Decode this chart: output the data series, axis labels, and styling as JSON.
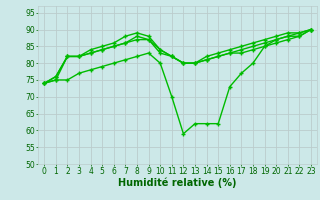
{
  "x": [
    0,
    1,
    2,
    3,
    4,
    5,
    6,
    7,
    8,
    9,
    10,
    11,
    12,
    13,
    14,
    15,
    16,
    17,
    18,
    19,
    20,
    21,
    22,
    23
  ],
  "series": [
    [
      74,
      76,
      82,
      82,
      84,
      85,
      86,
      88,
      89,
      88,
      84,
      82,
      80,
      80,
      82,
      83,
      84,
      85,
      86,
      87,
      88,
      89,
      89,
      90
    ],
    [
      74,
      76,
      82,
      82,
      83,
      84,
      85,
      86,
      88,
      87,
      83,
      82,
      80,
      80,
      81,
      82,
      83,
      84,
      85,
      86,
      87,
      88,
      88,
      90
    ],
    [
      74,
      75,
      82,
      82,
      83,
      84,
      85,
      86,
      87,
      87,
      84,
      82,
      80,
      80,
      81,
      82,
      83,
      83,
      84,
      85,
      86,
      87,
      88,
      90
    ],
    [
      74,
      75,
      75,
      77,
      78,
      79,
      80,
      81,
      82,
      83,
      80,
      70,
      59,
      62,
      62,
      62,
      73,
      77,
      80,
      85,
      87,
      88,
      89,
      90
    ]
  ],
  "line_color": "#00bb00",
  "marker": "P",
  "markersize": 2.5,
  "linewidth": 1.0,
  "xlabel": "Humidité relative (%)",
  "ylim": [
    50,
    97
  ],
  "xlim": [
    -0.5,
    23.5
  ],
  "yticks": [
    50,
    55,
    60,
    65,
    70,
    75,
    80,
    85,
    90,
    95
  ],
  "xticks": [
    0,
    1,
    2,
    3,
    4,
    5,
    6,
    7,
    8,
    9,
    10,
    11,
    12,
    13,
    14,
    15,
    16,
    17,
    18,
    19,
    20,
    21,
    22,
    23
  ],
  "bg_color": "#cce8e8",
  "grid_color": "#bbcccc",
  "tick_fontsize": 5.5,
  "xlabel_fontsize": 7.0,
  "xlabel_color": "#006600",
  "tick_color": "#006600"
}
